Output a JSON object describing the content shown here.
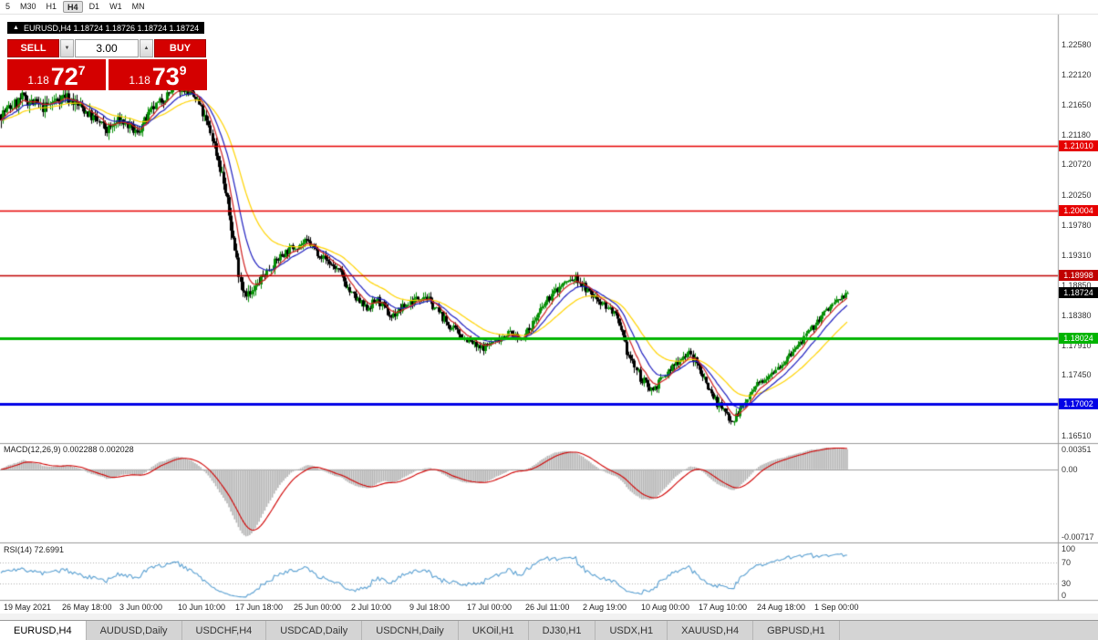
{
  "toolbar": {
    "periods": [
      "5",
      "M30",
      "H1",
      "H4",
      "D1",
      "W1",
      "MN"
    ],
    "active_period": "H4"
  },
  "chart_header": {
    "collapse_icon": "▲",
    "ohlc_line": "EURUSD,H4 1.18724 1.18726 1.18724 1.18724"
  },
  "trade_panel": {
    "sell_label": "SELL",
    "buy_label": "BUY",
    "volume": "3.00",
    "vol_down_icon": "▼",
    "vol_up_icon": "▲",
    "sell_price": {
      "prefix": "1.18",
      "big": "72",
      "pips": "7"
    },
    "buy_price": {
      "prefix": "1.18",
      "big": "73",
      "pips": "9"
    }
  },
  "price_axis": {
    "labels": [
      "1.22580",
      "1.22120",
      "1.21650",
      "1.21180",
      "1.20720",
      "1.20250",
      "1.19780",
      "1.19310",
      "1.18850",
      "1.18380",
      "1.17910",
      "1.17450",
      "1.16980",
      "1.16510"
    ],
    "current_price": "1.18724",
    "current_color": "#000000"
  },
  "h_lines": [
    {
      "price": 1.2101,
      "label": "1.21010",
      "color": "#e60000",
      "width": 1.6
    },
    {
      "price": 1.20004,
      "label": "1.20004",
      "color": "#e60000",
      "width": 1.6
    },
    {
      "price": 1.18998,
      "label": "1.18998",
      "color": "#c00000",
      "width": 1.6
    },
    {
      "price": 1.18024,
      "label": "1.18024",
      "color": "#00b400",
      "width": 3
    },
    {
      "price": 1.17002,
      "label": "1.17002",
      "color": "#0000e6",
      "width": 3
    }
  ],
  "macd_panel": {
    "label": "MACD(12,26,9) 0.002288 0.002028",
    "axis_labels": [
      "0.00351",
      "0.00",
      "-0.00717"
    ]
  },
  "rsi_panel": {
    "label": "RSI(14) 72.6991",
    "axis_labels": [
      "100",
      "70",
      "30",
      "0"
    ],
    "levels": [
      70,
      30
    ]
  },
  "time_axis": {
    "labels": [
      "19 May 2021",
      "26 May 18:00",
      "3 Jun 00:00",
      "10 Jun 10:00",
      "17 Jun 18:00",
      "25 Jun 00:00",
      "2 Jul 10:00",
      "9 Jul 18:00",
      "17 Jul 00:00",
      "26 Jul 11:00",
      "2 Aug 19:00",
      "10 Aug 00:00",
      "17 Aug 10:00",
      "24 Aug 18:00",
      "1 Sep 00:00"
    ]
  },
  "tabs": [
    {
      "label": "EURUSD,H4",
      "active": true
    },
    {
      "label": "AUDUSD,Daily",
      "active": false
    },
    {
      "label": "USDCHF,H4",
      "active": false
    },
    {
      "label": "USDCAD,Daily",
      "active": false
    },
    {
      "label": "USDCNH,Daily",
      "active": false
    },
    {
      "label": "UKOil,H1",
      "active": false
    },
    {
      "label": "DJ30,H1",
      "active": false
    },
    {
      "label": "USDX,H1",
      "active": false
    },
    {
      "label": "XAUUSD,H4",
      "active": false
    },
    {
      "label": "GBPUSD,H1",
      "active": false
    }
  ],
  "chart_data": {
    "type": "candlestick",
    "symbol": "EURUSD",
    "period": "H4",
    "n_bars": 450,
    "last_close": 1.18724,
    "axis_range": [
      1.163929,
      1.230496
    ],
    "seed": 7,
    "candle_colors": {
      "up": "#078f07",
      "down": "#000000"
    },
    "ma": [
      {
        "period": 34,
        "color": "#ffd400"
      },
      {
        "period": 16,
        "color": "#2020c0"
      },
      {
        "period": 8,
        "color": "#d02020"
      }
    ],
    "macd": {
      "fast": 12,
      "slow": 26,
      "signal": 9,
      "hist_color": "#b4b4b4",
      "signal_color": "#d00000"
    },
    "rsi": {
      "period": 14,
      "color": "#5aa0d2",
      "level_color": "#b0b0b0"
    },
    "waypoints": [
      [
        0.0,
        1.215,
        0.0022
      ],
      [
        0.025,
        1.2175,
        0.0022
      ],
      [
        0.05,
        1.216,
        0.002
      ],
      [
        0.075,
        1.218,
        0.002
      ],
      [
        0.1,
        1.2155,
        0.002
      ],
      [
        0.125,
        1.2125,
        0.002
      ],
      [
        0.141,
        1.2142,
        0.0018
      ],
      [
        0.16,
        1.212,
        0.0018
      ],
      [
        0.18,
        1.216,
        0.0016
      ],
      [
        0.2,
        1.2185,
        0.0016
      ],
      [
        0.215,
        1.2192,
        0.0016
      ],
      [
        0.232,
        1.217,
        0.0016
      ],
      [
        0.248,
        1.212,
        0.002
      ],
      [
        0.262,
        1.205,
        0.0024
      ],
      [
        0.27,
        1.199,
        0.0026
      ],
      [
        0.277,
        1.1932,
        0.0026
      ],
      [
        0.285,
        1.188,
        0.0024
      ],
      [
        0.295,
        1.1868,
        0.002
      ],
      [
        0.31,
        1.19,
        0.0016
      ],
      [
        0.33,
        1.193,
        0.0014
      ],
      [
        0.346,
        1.1945,
        0.0014
      ],
      [
        0.362,
        1.1952,
        0.0014
      ],
      [
        0.38,
        1.1928,
        0.0014
      ],
      [
        0.4,
        1.1905,
        0.0014
      ],
      [
        0.414,
        1.187,
        0.0016
      ],
      [
        0.43,
        1.1848,
        0.0016
      ],
      [
        0.445,
        1.1862,
        0.0014
      ],
      [
        0.46,
        1.1835,
        0.0014
      ],
      [
        0.483,
        1.1858,
        0.0014
      ],
      [
        0.5,
        1.187,
        0.0014
      ],
      [
        0.515,
        1.1845,
        0.0014
      ],
      [
        0.53,
        1.182,
        0.0014
      ],
      [
        0.551,
        1.18,
        0.0014
      ],
      [
        0.565,
        1.1785,
        0.0014
      ],
      [
        0.58,
        1.1795,
        0.0012
      ],
      [
        0.6,
        1.1812,
        0.0012
      ],
      [
        0.612,
        1.18,
        0.0012
      ],
      [
        0.619,
        1.1808,
        0.0012
      ],
      [
        0.635,
        1.184,
        0.0014
      ],
      [
        0.65,
        1.187,
        0.0014
      ],
      [
        0.665,
        1.1888,
        0.0016
      ],
      [
        0.68,
        1.1895,
        0.0016
      ],
      [
        0.695,
        1.1872,
        0.0014
      ],
      [
        0.71,
        1.1858,
        0.0014
      ],
      [
        0.725,
        1.184,
        0.0014
      ],
      [
        0.74,
        1.178,
        0.0016
      ],
      [
        0.756,
        1.1738,
        0.0016
      ],
      [
        0.77,
        1.1722,
        0.0014
      ],
      [
        0.785,
        1.1745,
        0.0014
      ],
      [
        0.8,
        1.1768,
        0.0014
      ],
      [
        0.812,
        1.178,
        0.0014
      ],
      [
        0.824,
        1.1758,
        0.0016
      ],
      [
        0.838,
        1.172,
        0.0016
      ],
      [
        0.852,
        1.169,
        0.0016
      ],
      [
        0.865,
        1.1675,
        0.0016
      ],
      [
        0.878,
        1.17,
        0.0014
      ],
      [
        0.892,
        1.1728,
        0.0012
      ],
      [
        0.908,
        1.1748,
        0.0012
      ],
      [
        0.925,
        1.1765,
        0.0012
      ],
      [
        0.94,
        1.1788,
        0.0012
      ],
      [
        0.955,
        1.1812,
        0.0012
      ],
      [
        0.97,
        1.1838,
        0.0012
      ],
      [
        0.985,
        1.1858,
        0.0012
      ],
      [
        1.0,
        1.18724,
        0.001
      ]
    ]
  }
}
